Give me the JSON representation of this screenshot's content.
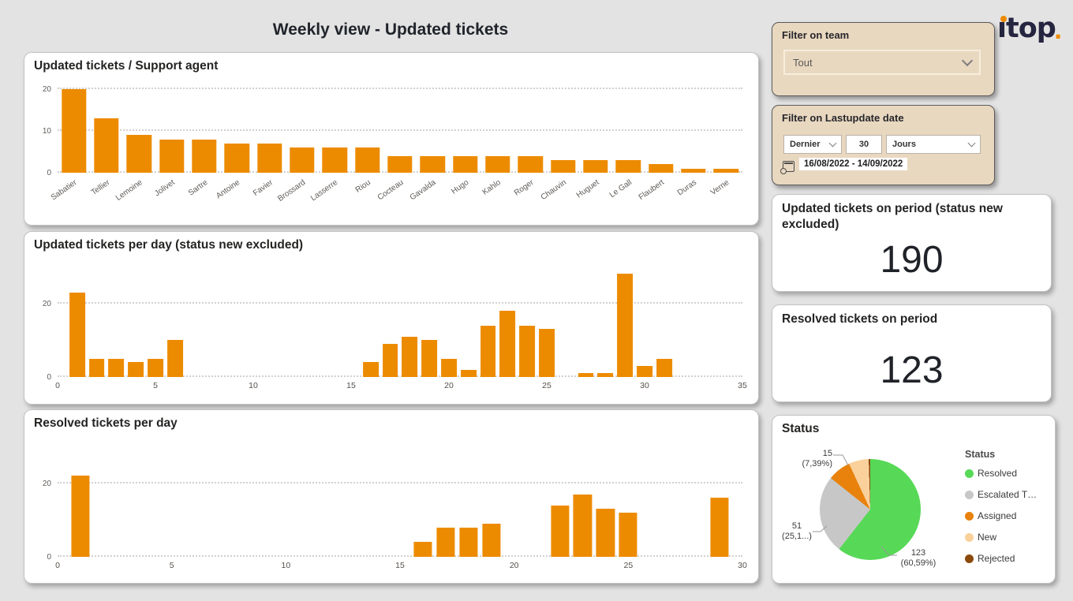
{
  "page": {
    "title": "Weekly view - Updated tickets"
  },
  "logo": {
    "text": "ıtop",
    "period": "."
  },
  "filters": {
    "team": {
      "label": "Filter on team",
      "value": "Tout"
    },
    "date": {
      "label": "Filter on Lastupdate date",
      "mode": "Dernier",
      "count": "30",
      "unit": "Jours",
      "range": "16/08/2022 - 14/09/2022"
    }
  },
  "kpis": [
    {
      "label": "Updated tickets on period (status new excluded)",
      "value": "190"
    },
    {
      "label": "Resolved tickets on period",
      "value": "123"
    }
  ],
  "colors": {
    "bar": "#ed8b00",
    "accent_beige": "#e9d8c0",
    "logo_dark": "#252540"
  },
  "chart_data": [
    {
      "type": "bar",
      "title": "Updated tickets / Support agent",
      "categories": [
        "Sabatier",
        "Tellier",
        "Lemoine",
        "Jolivet",
        "Sartre",
        "Antoine",
        "Favier",
        "Brossard",
        "Lasserre",
        "Riou",
        "Cocteau",
        "Gavalda",
        "Hugo",
        "Kahlo",
        "Roger",
        "Chauvin",
        "Huguet",
        "Le Gall",
        "Flaubert",
        "Duras",
        "Verne"
      ],
      "values": [
        20,
        13,
        9,
        8,
        8,
        7,
        7,
        6,
        6,
        6,
        4,
        4,
        4,
        4,
        4,
        3,
        3,
        3,
        2,
        1,
        1
      ],
      "ylim": [
        0,
        20
      ],
      "yticks": [
        0,
        10,
        20
      ],
      "bar_color": "#ed8b00",
      "grid": true
    },
    {
      "type": "bar",
      "title": "Updated tickets per day (status new excluded)",
      "x": [
        1,
        2,
        3,
        4,
        5,
        6,
        16,
        17,
        18,
        19,
        20,
        21,
        22,
        23,
        24,
        25,
        27,
        28,
        29,
        30,
        31
      ],
      "values": [
        23,
        5,
        5,
        4,
        5,
        10,
        4,
        9,
        11,
        10,
        5,
        2,
        14,
        18,
        14,
        13,
        1,
        1,
        28,
        3,
        5
      ],
      "xlim": [
        0,
        35
      ],
      "xticks": [
        0,
        5,
        10,
        15,
        20,
        25,
        30,
        35
      ],
      "ylim": [
        0,
        30
      ],
      "yticks": [
        0,
        20
      ],
      "bar_color": "#ed8b00",
      "grid": true
    },
    {
      "type": "bar",
      "title": "Resolved tickets per day",
      "x": [
        1,
        16,
        17,
        18,
        19,
        22,
        23,
        24,
        25,
        29
      ],
      "values": [
        22,
        4,
        8,
        8,
        9,
        14,
        17,
        13,
        12,
        16
      ],
      "xlim": [
        0,
        30
      ],
      "xticks": [
        0,
        5,
        10,
        15,
        20,
        25,
        30
      ],
      "ylim": [
        0,
        30
      ],
      "yticks": [
        0,
        20
      ],
      "bar_color": "#ed8b00",
      "grid": true
    },
    {
      "type": "pie",
      "title": "Status",
      "legend_title": "Status",
      "legend_position": "right",
      "slices": [
        {
          "label": "Resolved",
          "value": 123,
          "color": "#57d957",
          "callout": [
            "123",
            "(60,59%)"
          ]
        },
        {
          "label": "Escalated T…",
          "value": 51,
          "color": "#c7c7c7",
          "callout": [
            "51",
            "(25,1...)"
          ]
        },
        {
          "label": "Assigned",
          "value": 15,
          "color": "#e8820c",
          "callout": [
            "15",
            "(7,39%)"
          ]
        },
        {
          "label": "New",
          "value": 13,
          "color": "#fad09b",
          "callout": null
        },
        {
          "label": "Rejected",
          "value": 1,
          "color": "#8b4a0b",
          "callout": null
        }
      ]
    }
  ]
}
